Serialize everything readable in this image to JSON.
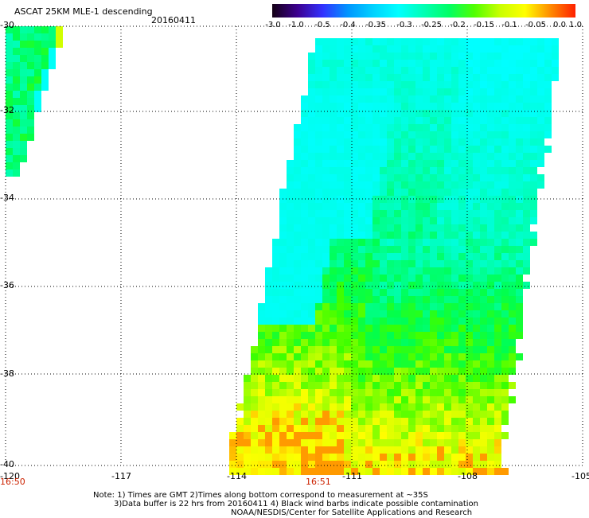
{
  "header": {
    "title": "ASCAT 25KM MLE-1 descending",
    "date": "20160411"
  },
  "colorbar": {
    "labels": [
      "-3.0",
      "-1.0",
      "-0.5",
      "-0.4",
      "-0.35",
      "-0.3",
      "-0.25",
      "-0.2",
      "-0.15",
      "-0.1",
      "-0.05",
      "0.0",
      "1.0"
    ],
    "colors": [
      "#140014",
      "#3c0090",
      "#3232ff",
      "#0096ff",
      "#00d2ff",
      "#00ffff",
      "#00ffb4",
      "#00ff64",
      "#50ff00",
      "#c8ff00",
      "#ffff00",
      "#ff8c00",
      "#ff2000"
    ]
  },
  "map": {
    "lat_labels": [
      "-30",
      "-32",
      "-34",
      "-36",
      "-38",
      "-40"
    ],
    "lon_labels": [
      "-120",
      "-117",
      "-114",
      "-111",
      "-108",
      "-105"
    ],
    "time_labels": [
      "16:50",
      "16:51"
    ]
  },
  "footer": {
    "line1": "Note: 1) Times are GMT 2)Times along bottom correspond to measurement at ~35S",
    "line2": "3)Data buffer is 22 hrs from 20160411 4) Black wind barbs indicate possible contamination",
    "line3": "NOAA/NESDIS/Center for Satellite Applications and Research"
  }
}
